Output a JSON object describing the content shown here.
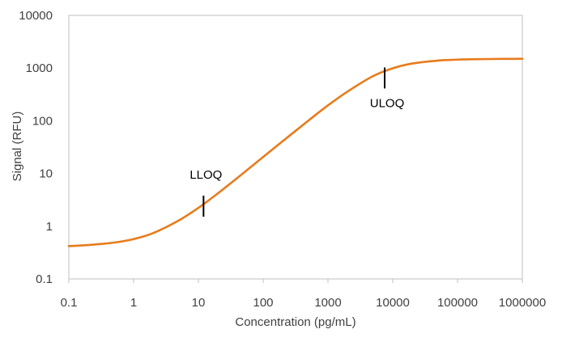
{
  "chart_data": {
    "type": "line",
    "title": "",
    "xlabel": "Concentration (pg/mL)",
    "ylabel": "Signal (RFU)",
    "x_scale": "log",
    "y_scale": "log",
    "xlim": [
      0.1,
      1000000
    ],
    "ylim": [
      0.1,
      10000
    ],
    "x_ticks": [
      0.1,
      1,
      10,
      100,
      1000,
      10000,
      100000,
      1000000
    ],
    "x_tick_labels": [
      "0.1",
      "1",
      "10",
      "100",
      "1000",
      "10000",
      "100000",
      "1000000"
    ],
    "y_ticks": [
      0.1,
      1,
      10,
      100,
      1000,
      10000
    ],
    "y_tick_labels": [
      "0.1",
      "1",
      "10",
      "100",
      "1000",
      "10000"
    ],
    "grid": {
      "x": false,
      "y": false
    },
    "legend": "none",
    "series": [
      {
        "color": "#E87B1C",
        "x": [
          0.1,
          0.2,
          0.5,
          1,
          2,
          5,
          10,
          20,
          50,
          100,
          200,
          500,
          1000,
          2000,
          5000,
          10000,
          20000,
          50000,
          100000,
          200000,
          500000,
          1000000
        ],
        "y": [
          0.42,
          0.44,
          0.49,
          0.57,
          0.74,
          1.29,
          2.23,
          4.2,
          10.3,
          20.6,
          41.0,
          101,
          196,
          358,
          707,
          991,
          1220,
          1389,
          1446,
          1475,
          1493,
          1500
        ]
      }
    ],
    "annotations": [
      {
        "label": "LLOQ",
        "x": 12,
        "y": 2.4,
        "marker": "vertical-tick",
        "label_position": "above"
      },
      {
        "label": "ULOQ",
        "x": 7500,
        "y": 650,
        "marker": "vertical-tick",
        "label_position": "below"
      }
    ],
    "colors": {
      "line": "#E87B1C",
      "axis": "#BFBFBF",
      "text": "#404040",
      "marker": "#000000"
    }
  }
}
